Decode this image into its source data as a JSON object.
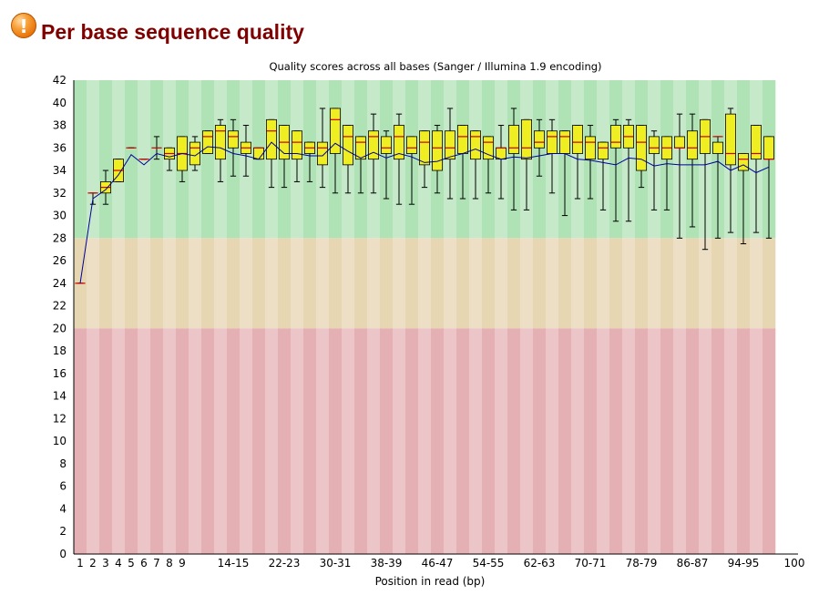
{
  "header": {
    "icon": "warning-icon",
    "icon_glyph": "!",
    "title": "Per base sequence quality"
  },
  "chart_data": {
    "type": "boxplot",
    "title": "Quality scores across all bases (Sanger / Illumina 1.9 encoding)",
    "xlabel": "Position in read (bp)",
    "ylabel": "",
    "ylim": [
      0,
      42
    ],
    "y_ticks": [
      0,
      2,
      4,
      6,
      8,
      10,
      12,
      14,
      16,
      18,
      20,
      22,
      24,
      26,
      28,
      30,
      32,
      34,
      36,
      38,
      40,
      42
    ],
    "x_tick_labels": [
      "1",
      "2",
      "3",
      "4",
      "5",
      "6",
      "7",
      "8",
      "9",
      "14-15",
      "22-23",
      "30-31",
      "38-39",
      "46-47",
      "54-55",
      "62-63",
      "70-71",
      "78-79",
      "86-87",
      "94-95",
      "100"
    ],
    "x_tick_index": [
      0,
      1,
      2,
      3,
      4,
      5,
      6,
      7,
      8,
      12,
      16,
      20,
      24,
      28,
      32,
      36,
      40,
      44,
      48,
      52,
      56
    ],
    "categories": [
      "1",
      "2",
      "3",
      "4",
      "5",
      "6",
      "7",
      "8",
      "9",
      "10-11",
      "12-13",
      "14-15",
      "16-17",
      "18-19",
      "20-21",
      "22-23",
      "24-25",
      "26-27",
      "28-29",
      "30-31",
      "32-33",
      "34-35",
      "36-37",
      "38-39",
      "40-41",
      "42-43",
      "44-45",
      "46-47",
      "48-49",
      "50-51",
      "52-53",
      "54-55",
      "56-57",
      "58-59",
      "60-61",
      "62-63",
      "64-65",
      "66-67",
      "68-69",
      "70-71",
      "72-73",
      "74-75",
      "76-77",
      "78-79",
      "80-81",
      "82-83",
      "84-85",
      "86-87",
      "88-89",
      "90-91",
      "92-93",
      "94-95",
      "96-97",
      "98-99",
      "100"
    ],
    "zones": [
      {
        "from": 28,
        "to": 42,
        "color_dark": "#afe3b6",
        "color_light": "#c6e9ca"
      },
      {
        "from": 20,
        "to": 28,
        "color_dark": "#e6d7b2",
        "color_light": "#ecdfc5"
      },
      {
        "from": 0,
        "to": 20,
        "color_dark": "#e5b0b3",
        "color_light": "#ebc5c7"
      }
    ],
    "colors": {
      "box": "#eeee22",
      "median": "#cc0000",
      "mean": "#000099",
      "whisker": "#000000"
    },
    "series": [
      {
        "name": "lower_whisker",
        "values": [
          24,
          31,
          31,
          33,
          36,
          35,
          35,
          34,
          33,
          34,
          35.5,
          33,
          33.5,
          33.5,
          35,
          32.5,
          32.5,
          33,
          33,
          32.5,
          32,
          32,
          32,
          32,
          31.5,
          31,
          31,
          32.5,
          32,
          31.5,
          31.5,
          31.5,
          32,
          31.5,
          30.5,
          30.5,
          33.5,
          32,
          30,
          31.5,
          31.5,
          30.5,
          29.5,
          29.5,
          32.5,
          30.5,
          30.5,
          28,
          29,
          27,
          28,
          28.5,
          27.5,
          28.5,
          28
        ]
      },
      {
        "name": "q1",
        "values": [
          24,
          32,
          32,
          33,
          36,
          35,
          36,
          35,
          34,
          34.5,
          35.5,
          35,
          36,
          35.5,
          35,
          35,
          35,
          35,
          35.5,
          34.5,
          35.5,
          34.5,
          35,
          35,
          35.5,
          35,
          35.5,
          34.5,
          34,
          35,
          35.5,
          35,
          35,
          35,
          35.5,
          35,
          36,
          35.5,
          35.5,
          35.5,
          35,
          35,
          36,
          36,
          34,
          35.5,
          35,
          36,
          35,
          35.5,
          35.5,
          34.5,
          34,
          35,
          35
        ]
      },
      {
        "name": "median",
        "values": [
          24,
          32,
          32.5,
          34,
          36,
          35,
          36,
          35.5,
          35.5,
          36,
          37,
          37.5,
          37,
          36,
          36,
          37.5,
          36.5,
          36.5,
          36,
          36,
          38.5,
          37,
          36.5,
          37,
          36,
          37,
          36,
          36.5,
          36,
          36,
          37,
          37,
          36.5,
          36,
          36,
          36,
          36.5,
          37,
          37,
          36.5,
          36.5,
          36,
          36.5,
          37,
          36.5,
          36,
          36,
          36,
          36,
          37,
          37,
          35.5,
          35,
          35.5,
          35
        ]
      },
      {
        "name": "q3",
        "values": [
          24,
          32,
          33,
          35,
          36,
          35,
          36,
          36,
          37,
          36.5,
          37.5,
          38,
          37.5,
          36.5,
          36,
          38.5,
          38,
          37.5,
          36.5,
          36.5,
          39.5,
          38,
          37,
          37.5,
          37,
          38,
          37,
          37.5,
          37.5,
          37.5,
          38,
          37.5,
          37,
          36,
          38,
          38.5,
          37.5,
          37.5,
          37.5,
          38,
          37,
          36.5,
          38,
          38,
          38,
          37,
          37,
          37,
          37.5,
          38.5,
          36.5,
          39,
          35.5,
          38,
          37
        ]
      },
      {
        "name": "upper_whisker",
        "values": [
          24,
          32,
          34,
          35,
          36,
          35,
          37,
          36,
          37,
          37,
          37.5,
          38.5,
          38.5,
          38,
          36,
          38.5,
          38,
          37.5,
          36.5,
          39.5,
          39.5,
          38,
          37,
          39,
          37.5,
          39,
          37,
          37.5,
          38,
          39.5,
          38,
          37.5,
          37,
          38,
          39.5,
          38.5,
          38.5,
          38.5,
          37.5,
          38,
          38,
          36.5,
          38.5,
          38.5,
          38,
          37.5,
          37,
          39,
          39,
          38.5,
          37,
          39.5,
          35.5,
          38,
          37
        ]
      },
      {
        "name": "mean",
        "values": [
          24,
          31.5,
          32.3,
          33.6,
          35.4,
          34.5,
          35.5,
          35.2,
          35.5,
          35.3,
          36.1,
          36,
          35.5,
          35.3,
          35,
          36.5,
          35.5,
          35.5,
          35.3,
          35.3,
          36.4,
          35.7,
          35.1,
          35.6,
          35.1,
          35.5,
          35.2,
          34.7,
          34.8,
          35.2,
          35.5,
          35.9,
          35.4,
          35,
          35.2,
          35.1,
          35.3,
          35.5,
          35.5,
          35,
          34.9,
          34.7,
          34.5,
          35.1,
          35,
          34.4,
          34.6,
          34.5,
          34.5,
          34.5,
          34.8,
          34,
          34.5,
          33.8,
          34.3
        ]
      }
    ]
  }
}
